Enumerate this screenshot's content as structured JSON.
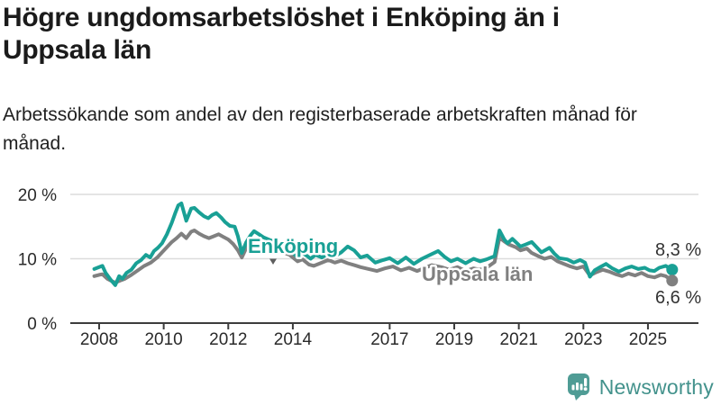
{
  "header": {
    "title": "Högre ungdomsarbetslöshet i Enköping än i Uppsala län",
    "subtitle": "Arbetssökande som andel av den registerbaserade arbetskraften månad för månad."
  },
  "chart_data": {
    "type": "line",
    "title": "Högre ungdomsarbetslöshet i Enköping än i Uppsala län",
    "subtitle": "Arbetssökande som andel av den registerbaserade arbetskraften månad för månad.",
    "unit": "%",
    "grid": true,
    "legend_position": "inline-labels-on-lines",
    "x_axis": {
      "range": [
        2007.85,
        2025.95
      ],
      "ticks": [
        2008,
        2010,
        2012,
        2014,
        2017,
        2019,
        2021,
        2023,
        2025
      ],
      "tick_labels": [
        "2008",
        "2010",
        "2012",
        "2014",
        "2017",
        "2019",
        "2021",
        "2023",
        "2025"
      ]
    },
    "y_axis": {
      "range": [
        0,
        21.5
      ],
      "ticks": [
        0,
        10,
        20
      ],
      "tick_labels": [
        "0 %",
        "10 %",
        "20 %"
      ]
    },
    "series": [
      {
        "name": "Enköping",
        "color": "#19a095",
        "end_value": 8.3,
        "end_label": "8,3 %",
        "points": [
          [
            2007.85,
            8.4
          ],
          [
            2008.0,
            8.7
          ],
          [
            2008.1,
            8.9
          ],
          [
            2008.2,
            7.8
          ],
          [
            2008.35,
            6.8
          ],
          [
            2008.5,
            5.9
          ],
          [
            2008.62,
            7.3
          ],
          [
            2008.72,
            6.9
          ],
          [
            2008.85,
            7.8
          ],
          [
            2009.0,
            8.3
          ],
          [
            2009.15,
            9.3
          ],
          [
            2009.3,
            9.8
          ],
          [
            2009.45,
            10.6
          ],
          [
            2009.58,
            10.2
          ],
          [
            2009.7,
            11.2
          ],
          [
            2009.82,
            11.7
          ],
          [
            2009.95,
            12.4
          ],
          [
            2010.1,
            13.8
          ],
          [
            2010.25,
            15.6
          ],
          [
            2010.35,
            17.0
          ],
          [
            2010.45,
            18.3
          ],
          [
            2010.55,
            18.6
          ],
          [
            2010.7,
            15.9
          ],
          [
            2010.85,
            17.8
          ],
          [
            2010.95,
            17.9
          ],
          [
            2011.1,
            17.2
          ],
          [
            2011.25,
            16.6
          ],
          [
            2011.38,
            16.3
          ],
          [
            2011.5,
            16.8
          ],
          [
            2011.63,
            17.1
          ],
          [
            2011.78,
            16.4
          ],
          [
            2011.9,
            15.7
          ],
          [
            2012.05,
            15.1
          ],
          [
            2012.2,
            15.0
          ],
          [
            2012.3,
            13.5
          ],
          [
            2012.42,
            10.9
          ],
          [
            2012.55,
            12.5
          ],
          [
            2012.7,
            13.7
          ],
          [
            2012.8,
            14.3
          ],
          [
            2012.95,
            13.8
          ],
          [
            2013.1,
            13.3
          ],
          [
            2013.3,
            12.9
          ],
          [
            2013.5,
            12.5
          ],
          [
            2013.7,
            12.2
          ],
          [
            2013.85,
            11.7
          ],
          [
            2014.0,
            11.0
          ],
          [
            2014.15,
            10.2
          ],
          [
            2014.3,
            10.9
          ],
          [
            2014.45,
            10.4
          ],
          [
            2014.55,
            10.0
          ],
          [
            2014.7,
            10.6
          ],
          [
            2014.9,
            10.2
          ],
          [
            2015.1,
            10.8
          ],
          [
            2015.3,
            10.4
          ],
          [
            2015.5,
            11.0
          ],
          [
            2015.7,
            11.9
          ],
          [
            2015.9,
            11.3
          ],
          [
            2016.1,
            10.2
          ],
          [
            2016.3,
            10.5
          ],
          [
            2016.55,
            9.4
          ],
          [
            2016.8,
            9.8
          ],
          [
            2017.0,
            10.1
          ],
          [
            2017.25,
            9.3
          ],
          [
            2017.5,
            10.2
          ],
          [
            2017.75,
            9.2
          ],
          [
            2018.0,
            10.0
          ],
          [
            2018.25,
            10.6
          ],
          [
            2018.5,
            11.2
          ],
          [
            2018.7,
            10.3
          ],
          [
            2018.9,
            9.6
          ],
          [
            2019.1,
            10.0
          ],
          [
            2019.35,
            9.3
          ],
          [
            2019.6,
            10.0
          ],
          [
            2019.8,
            9.6
          ],
          [
            2020.0,
            9.9
          ],
          [
            2020.25,
            10.4
          ],
          [
            2020.4,
            14.4
          ],
          [
            2020.55,
            13.0
          ],
          [
            2020.65,
            12.4
          ],
          [
            2020.8,
            13.1
          ],
          [
            2021.05,
            11.9
          ],
          [
            2021.2,
            12.2
          ],
          [
            2021.4,
            12.6
          ],
          [
            2021.55,
            11.8
          ],
          [
            2021.7,
            11.0
          ],
          [
            2021.95,
            11.7
          ],
          [
            2022.1,
            10.8
          ],
          [
            2022.25,
            10.1
          ],
          [
            2022.5,
            9.9
          ],
          [
            2022.7,
            9.4
          ],
          [
            2022.9,
            9.8
          ],
          [
            2023.05,
            9.4
          ],
          [
            2023.2,
            7.2
          ],
          [
            2023.35,
            8.2
          ],
          [
            2023.55,
            8.8
          ],
          [
            2023.7,
            9.2
          ],
          [
            2023.9,
            8.5
          ],
          [
            2024.1,
            8.0
          ],
          [
            2024.3,
            8.5
          ],
          [
            2024.5,
            8.8
          ],
          [
            2024.7,
            8.4
          ],
          [
            2024.9,
            8.6
          ],
          [
            2025.05,
            8.2
          ],
          [
            2025.2,
            8.1
          ],
          [
            2025.35,
            8.6
          ],
          [
            2025.55,
            8.9
          ],
          [
            2025.75,
            8.3
          ]
        ]
      },
      {
        "name": "Uppsala län",
        "color": "#808080",
        "end_value": 6.6,
        "end_label": "6,6 %",
        "points": [
          [
            2007.85,
            7.3
          ],
          [
            2008.0,
            7.5
          ],
          [
            2008.1,
            7.6
          ],
          [
            2008.25,
            6.9
          ],
          [
            2008.4,
            6.5
          ],
          [
            2008.5,
            6.3
          ],
          [
            2008.65,
            6.6
          ],
          [
            2008.8,
            6.9
          ],
          [
            2009.0,
            7.5
          ],
          [
            2009.2,
            8.2
          ],
          [
            2009.4,
            8.9
          ],
          [
            2009.6,
            9.4
          ],
          [
            2009.8,
            10.2
          ],
          [
            2009.95,
            11.0
          ],
          [
            2010.1,
            11.8
          ],
          [
            2010.25,
            12.6
          ],
          [
            2010.4,
            13.2
          ],
          [
            2010.55,
            13.9
          ],
          [
            2010.7,
            13.2
          ],
          [
            2010.85,
            14.2
          ],
          [
            2010.95,
            14.4
          ],
          [
            2011.1,
            13.9
          ],
          [
            2011.25,
            13.5
          ],
          [
            2011.4,
            13.2
          ],
          [
            2011.55,
            13.5
          ],
          [
            2011.7,
            13.8
          ],
          [
            2011.85,
            13.4
          ],
          [
            2012.0,
            13.0
          ],
          [
            2012.15,
            12.3
          ],
          [
            2012.3,
            11.3
          ],
          [
            2012.42,
            10.2
          ],
          [
            2012.55,
            11.6
          ],
          [
            2012.7,
            12.3
          ],
          [
            2012.82,
            12.7
          ],
          [
            2012.95,
            12.4
          ],
          [
            2013.15,
            12.0
          ],
          [
            2013.35,
            11.6
          ],
          [
            2013.55,
            11.2
          ],
          [
            2013.75,
            10.9
          ],
          [
            2013.9,
            10.6
          ],
          [
            2014.0,
            10.2
          ],
          [
            2014.15,
            9.6
          ],
          [
            2014.3,
            9.9
          ],
          [
            2014.5,
            9.1
          ],
          [
            2014.65,
            8.9
          ],
          [
            2014.85,
            9.3
          ],
          [
            2015.1,
            9.8
          ],
          [
            2015.3,
            9.4
          ],
          [
            2015.5,
            9.7
          ],
          [
            2015.7,
            9.3
          ],
          [
            2015.9,
            9.0
          ],
          [
            2016.1,
            8.7
          ],
          [
            2016.35,
            8.4
          ],
          [
            2016.6,
            8.1
          ],
          [
            2016.85,
            8.5
          ],
          [
            2017.1,
            8.8
          ],
          [
            2017.35,
            8.2
          ],
          [
            2017.6,
            8.6
          ],
          [
            2017.85,
            8.1
          ],
          [
            2018.1,
            8.6
          ],
          [
            2018.3,
            9.0
          ],
          [
            2018.6,
            8.7
          ],
          [
            2018.85,
            8.3
          ],
          [
            2019.1,
            8.7
          ],
          [
            2019.35,
            8.1
          ],
          [
            2019.6,
            8.5
          ],
          [
            2019.8,
            8.3
          ],
          [
            2020.0,
            8.6
          ],
          [
            2020.25,
            9.5
          ],
          [
            2020.4,
            13.3
          ],
          [
            2020.55,
            12.7
          ],
          [
            2020.7,
            12.2
          ],
          [
            2020.9,
            11.8
          ],
          [
            2021.05,
            11.3
          ],
          [
            2021.25,
            11.6
          ],
          [
            2021.4,
            10.9
          ],
          [
            2021.6,
            10.4
          ],
          [
            2021.8,
            10.0
          ],
          [
            2022.0,
            10.3
          ],
          [
            2022.2,
            9.6
          ],
          [
            2022.4,
            9.2
          ],
          [
            2022.6,
            8.8
          ],
          [
            2022.8,
            8.5
          ],
          [
            2023.0,
            8.8
          ],
          [
            2023.2,
            7.4
          ],
          [
            2023.4,
            7.9
          ],
          [
            2023.6,
            8.3
          ],
          [
            2023.8,
            8.0
          ],
          [
            2024.0,
            7.6
          ],
          [
            2024.2,
            7.3
          ],
          [
            2024.4,
            7.7
          ],
          [
            2024.6,
            7.4
          ],
          [
            2024.8,
            7.8
          ],
          [
            2025.0,
            7.3
          ],
          [
            2025.2,
            7.1
          ],
          [
            2025.4,
            7.5
          ],
          [
            2025.55,
            7.3
          ],
          [
            2025.75,
            6.6
          ]
        ]
      }
    ]
  },
  "colors": {
    "accent_teal": "#19a095",
    "series_gray": "#808080",
    "gridline": "#dcdcdc",
    "axis": "#3d3d3d",
    "tick_text": "#2a2a2a",
    "end_label_text": "#333333",
    "brand_teal": "#43928c",
    "logo_fill": "#4f9c95"
  },
  "footer": {
    "brand": "Newsworthy",
    "icon": "newsworthy-logo-icon"
  }
}
